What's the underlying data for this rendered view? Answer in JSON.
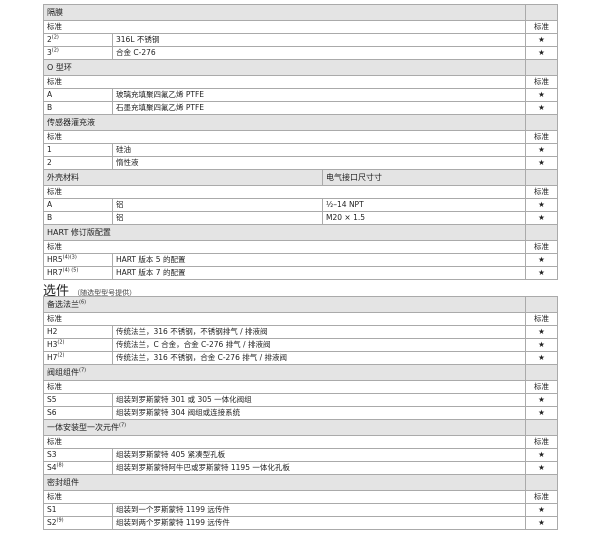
{
  "std_label": "标准",
  "star": "★",
  "table1": [
    {
      "header": "隔膜",
      "rows": [
        {
          "code": "2",
          "sup": "(2)",
          "desc": "316L 不锈钢"
        },
        {
          "code": "3",
          "sup": "(2)",
          "desc": "合金 C-276"
        }
      ]
    },
    {
      "header": "O 型环",
      "rows": [
        {
          "code": "A",
          "sup": "",
          "desc": "玻璃充填聚四氟乙烯 PTFE"
        },
        {
          "code": "B",
          "sup": "",
          "desc": "石墨充填聚四氟乙烯 PTFE"
        }
      ]
    },
    {
      "header": "传感器灌充液",
      "rows": [
        {
          "code": "1",
          "sup": "",
          "desc": "硅油"
        },
        {
          "code": "2",
          "sup": "",
          "desc": "惰性液"
        }
      ]
    },
    {
      "header": "外壳材料",
      "header2": "电气接口尺寸寸",
      "rows": [
        {
          "code": "A",
          "sup": "",
          "desc": "铝",
          "desc2": "½–14 NPT"
        },
        {
          "code": "B",
          "sup": "",
          "desc": "铝",
          "desc2": "M20 × 1.5"
        }
      ]
    },
    {
      "header": "HART 修订版配置",
      "rows": [
        {
          "code": "HR5",
          "sup": "(4)(3)",
          "desc": "HART 版本 5 的配置"
        },
        {
          "code": "HR7",
          "sup": "(4) (5)",
          "desc": "HART 版本 7 的配置"
        }
      ]
    }
  ],
  "options_title": "选件",
  "options_subtitle": "（随选型型号提供）",
  "table2": [
    {
      "header": "备选法兰",
      "hsup": "(6)",
      "rows": [
        {
          "code": "H2",
          "sup": "",
          "desc": "传统法兰，316 不锈钢，不锈钢排气 / 排液阀"
        },
        {
          "code": "H3",
          "sup": "(2)",
          "desc": "传统法兰，C 合金，合金 C-276 排气 / 排液阀"
        },
        {
          "code": "H7",
          "sup": "(2)",
          "desc": "传统法兰，316 不锈钢，合金 C-276 排气 / 排液阀"
        }
      ]
    },
    {
      "header": "阀组组件",
      "hsup": "(7)",
      "rows": [
        {
          "code": "S5",
          "sup": "",
          "desc": "组装到罗斯蒙特 301 或 305 一体化阀组"
        },
        {
          "code": "S6",
          "sup": "",
          "desc": "组装到罗斯蒙特 304 阀组或连接系统"
        }
      ]
    },
    {
      "header": "一体安装型一次元件",
      "hsup": "(7)",
      "rows": [
        {
          "code": "S3",
          "sup": "",
          "desc": "组装到罗斯蒙特 405 紧凑型孔板"
        },
        {
          "code": "S4",
          "sup": "(8)",
          "desc": "组装到罗斯蒙特阿牛巴或罗斯蒙特 1195 一体化孔板"
        }
      ]
    },
    {
      "header": "密封组件",
      "hsup": "",
      "rows": [
        {
          "code": "S1",
          "sup": "",
          "desc": "组装到一个罗斯蒙特 1199 远传件"
        },
        {
          "code": "S2",
          "sup": "(9)",
          "desc": "组装到两个罗斯蒙特 1199 远传件"
        }
      ]
    }
  ]
}
